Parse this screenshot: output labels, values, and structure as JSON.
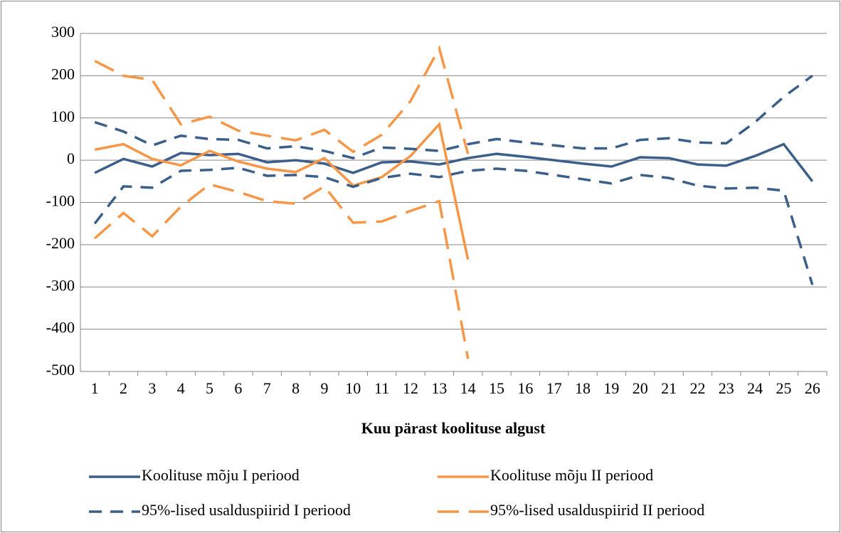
{
  "chart_data": {
    "type": "line",
    "x_label": "Kuu pärast koolituse algust",
    "categories": [
      "1",
      "2",
      "3",
      "4",
      "5",
      "6",
      "7",
      "8",
      "9",
      "10",
      "11",
      "12",
      "13",
      "14",
      "15",
      "16",
      "17",
      "18",
      "19",
      "20",
      "21",
      "22",
      "23",
      "24",
      "25",
      "26"
    ],
    "ylim": [
      -500,
      300
    ],
    "yticks": [
      -500,
      -400,
      -300,
      -200,
      -100,
      0,
      100,
      200,
      300
    ],
    "grid": true,
    "series": [
      {
        "name": "Koolituse mõju I periood",
        "color": "#3b5f8a",
        "style": "solid",
        "values": [
          -30,
          3,
          -15,
          17,
          12,
          15,
          -5,
          0,
          -8,
          -30,
          -5,
          -3,
          -10,
          5,
          15,
          8,
          0,
          -8,
          -15,
          7,
          5,
          -10,
          -13,
          10,
          38,
          -50
        ]
      },
      {
        "name": "Koolituse mõju II periood",
        "color": "#f79646",
        "style": "solid",
        "values": [
          25,
          38,
          3,
          -12,
          22,
          -3,
          -20,
          -28,
          5,
          -60,
          -40,
          10,
          85,
          -235,
          null,
          null,
          null,
          null,
          null,
          null,
          null,
          null,
          null,
          null,
          null,
          null
        ]
      },
      {
        "name": "95%-lised usalduspiirid I periood",
        "color": "#3b5f8a",
        "style": "dashed",
        "upper": [
          90,
          68,
          35,
          58,
          50,
          48,
          28,
          33,
          22,
          5,
          30,
          27,
          22,
          38,
          50,
          42,
          35,
          28,
          28,
          48,
          52,
          42,
          40,
          90,
          150,
          200
        ],
        "lower": [
          -150,
          -62,
          -65,
          -25,
          -23,
          -18,
          -37,
          -35,
          -40,
          -63,
          -42,
          -32,
          -40,
          -25,
          -20,
          -25,
          -35,
          -45,
          -55,
          -35,
          -42,
          -60,
          -67,
          -65,
          -72,
          -295
        ]
      },
      {
        "name": "95%-lised usalduspiirid II periood",
        "color": "#f79646",
        "style": "dashed",
        "upper": [
          235,
          200,
          190,
          85,
          103,
          70,
          58,
          47,
          72,
          20,
          60,
          140,
          265,
          15,
          null,
          null,
          null,
          null,
          null,
          null,
          null,
          null,
          null,
          null,
          null,
          null
        ],
        "lower": [
          -185,
          -125,
          -180,
          -110,
          -57,
          -75,
          -97,
          -103,
          -62,
          -148,
          -145,
          -120,
          -97,
          -470,
          null,
          null,
          null,
          null,
          null,
          null,
          null,
          null,
          null,
          null,
          null,
          null
        ]
      }
    ]
  }
}
